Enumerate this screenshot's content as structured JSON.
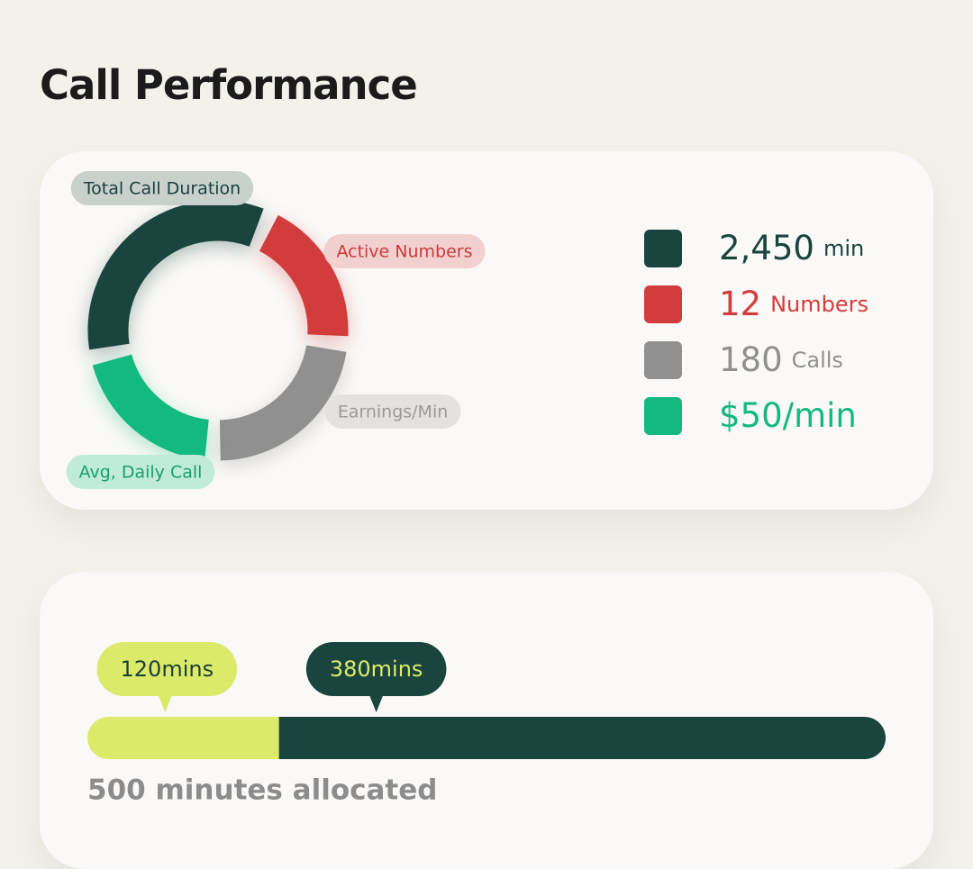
{
  "title": "Call Performance",
  "donut": {
    "segments": [
      {
        "label": "Total Call Duration",
        "size": 35,
        "color": "#19453e",
        "label_bg": "#c9d1cd",
        "label_color": "#1a3f3a"
      },
      {
        "label": "Active Numbers",
        "size": 20,
        "color": "#d33c3c",
        "label_bg": "#f3d0d0",
        "label_color": "#c83b3b"
      },
      {
        "label": "Earnings/Min",
        "size": 24,
        "color": "#909090",
        "label_bg": "#e4e2df",
        "label_color": "#9a9a9a"
      },
      {
        "label": "Avg, Daily Call",
        "size": 21,
        "color": "#12b981",
        "label_bg": "#c0eada",
        "label_color": "#18a06d"
      }
    ]
  },
  "legend": [
    {
      "value": "2,450",
      "unit": "min",
      "color": "#19453e"
    },
    {
      "value": "12",
      "unit": "Numbers",
      "color": "#d33c3c"
    },
    {
      "value": "180",
      "unit": "Calls",
      "color": "#909090"
    },
    {
      "value": "$50",
      "unit": "/min",
      "color": "#12b981"
    }
  ],
  "usage": {
    "segments": [
      {
        "value": 120,
        "label": "120mins",
        "color": "#dcea6a",
        "label_bg": "#dcea6a",
        "label_color": "#1a3f3a"
      },
      {
        "value": 380,
        "label": "380mins",
        "color": "#19453e",
        "label_bg": "#19453e",
        "label_color": "#dcea6a"
      }
    ],
    "total": {
      "value": 500,
      "label": "500 minutes allocated"
    }
  }
}
